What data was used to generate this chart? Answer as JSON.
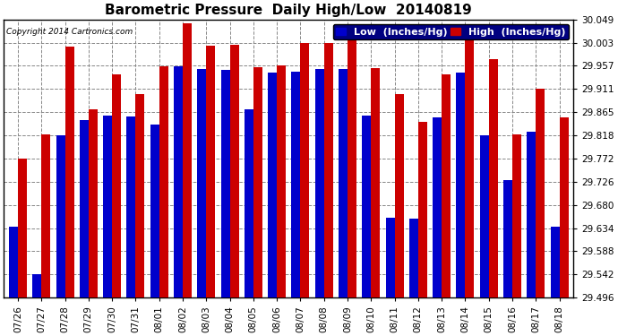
{
  "title": "Barometric Pressure  Daily High/Low  20140819",
  "copyright": "Copyright 2014 Cartronics.com",
  "legend_low": "Low  (Inches/Hg)",
  "legend_high": "High  (Inches/Hg)",
  "dates": [
    "07/26",
    "07/27",
    "07/28",
    "07/29",
    "07/30",
    "07/31",
    "08/01",
    "08/02",
    "08/03",
    "08/04",
    "08/05",
    "08/06",
    "08/07",
    "08/08",
    "08/09",
    "08/10",
    "08/11",
    "08/12",
    "08/13",
    "08/14",
    "08/15",
    "08/16",
    "08/17",
    "08/18"
  ],
  "low_values": [
    29.636,
    29.542,
    29.818,
    29.848,
    29.858,
    29.856,
    29.84,
    29.955,
    29.95,
    29.948,
    29.87,
    29.944,
    29.946,
    29.95,
    29.95,
    29.858,
    29.654,
    29.653,
    29.854,
    29.944,
    29.818,
    29.73,
    29.825,
    29.637
  ],
  "high_values": [
    29.772,
    29.82,
    29.995,
    29.87,
    29.94,
    29.9,
    29.955,
    30.042,
    29.997,
    29.998,
    29.954,
    29.958,
    30.003,
    30.003,
    30.022,
    29.953,
    29.9,
    29.845,
    29.94,
    30.022,
    29.97,
    29.82,
    29.912,
    29.855
  ],
  "ylim_min": 29.496,
  "ylim_max": 30.049,
  "yticks": [
    29.496,
    29.542,
    29.588,
    29.634,
    29.68,
    29.726,
    29.772,
    29.818,
    29.865,
    29.911,
    29.957,
    30.003,
    30.049
  ],
  "bar_width": 0.38,
  "low_color": "#0000cc",
  "high_color": "#cc0000",
  "bg_color": "#ffffff",
  "grid_color": "#888888",
  "title_fontsize": 11,
  "tick_fontsize": 7.5,
  "legend_fontsize": 8
}
